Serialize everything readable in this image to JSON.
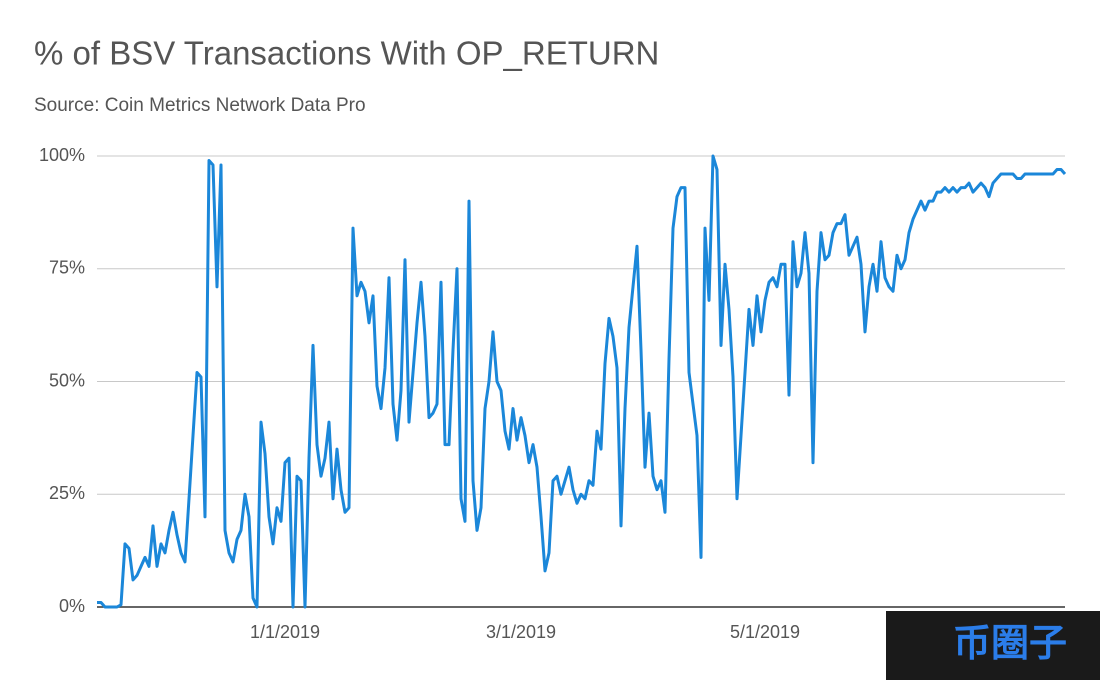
{
  "chart_data": {
    "type": "line",
    "title": "% of BSV Transactions With OP_RETURN",
    "subtitle": "Source: Coin Metrics Network Data Pro",
    "watermark": "币圈子",
    "x": [
      "2018-11-15",
      "2018-11-16",
      "2018-11-17",
      "2018-11-18",
      "2018-11-19",
      "2018-11-20",
      "2018-11-21",
      "2018-11-22",
      "2018-11-23",
      "2018-11-24",
      "2018-11-25",
      "2018-11-26",
      "2018-11-27",
      "2018-11-28",
      "2018-11-29",
      "2018-11-30",
      "2018-12-01",
      "2018-12-02",
      "2018-12-03",
      "2018-12-04",
      "2018-12-05",
      "2018-12-06",
      "2018-12-07",
      "2018-12-08",
      "2018-12-09",
      "2018-12-10",
      "2018-12-11",
      "2018-12-12",
      "2018-12-13",
      "2018-12-14",
      "2018-12-15",
      "2018-12-16",
      "2018-12-17",
      "2018-12-18",
      "2018-12-19",
      "2018-12-20",
      "2018-12-21",
      "2018-12-22",
      "2018-12-23",
      "2018-12-24",
      "2018-12-25",
      "2018-12-26",
      "2018-12-27",
      "2018-12-28",
      "2018-12-29",
      "2018-12-30",
      "2018-12-31",
      "2019-01-01",
      "2019-01-02",
      "2019-01-03",
      "2019-01-04",
      "2019-01-05",
      "2019-01-06",
      "2019-01-07",
      "2019-01-08",
      "2019-01-09",
      "2019-01-10",
      "2019-01-11",
      "2019-01-12",
      "2019-01-13",
      "2019-01-14",
      "2019-01-15",
      "2019-01-16",
      "2019-01-17",
      "2019-01-18",
      "2019-01-19",
      "2019-01-20",
      "2019-01-21",
      "2019-01-22",
      "2019-01-23",
      "2019-01-24",
      "2019-01-25",
      "2019-01-26",
      "2019-01-27",
      "2019-01-28",
      "2019-01-29",
      "2019-01-30",
      "2019-01-31",
      "2019-02-01",
      "2019-02-02",
      "2019-02-03",
      "2019-02-04",
      "2019-02-05",
      "2019-02-06",
      "2019-02-07",
      "2019-02-08",
      "2019-02-09",
      "2019-02-10",
      "2019-02-11",
      "2019-02-12",
      "2019-02-13",
      "2019-02-14",
      "2019-02-15",
      "2019-02-16",
      "2019-02-17",
      "2019-02-18",
      "2019-02-19",
      "2019-02-20",
      "2019-02-21",
      "2019-02-22",
      "2019-02-23",
      "2019-02-24",
      "2019-02-25",
      "2019-02-26",
      "2019-02-27",
      "2019-02-28",
      "2019-03-01",
      "2019-03-02",
      "2019-03-03",
      "2019-03-04",
      "2019-03-05",
      "2019-03-06",
      "2019-03-07",
      "2019-03-08",
      "2019-03-09",
      "2019-03-10",
      "2019-03-11",
      "2019-03-12",
      "2019-03-13",
      "2019-03-14",
      "2019-03-15",
      "2019-03-16",
      "2019-03-17",
      "2019-03-18",
      "2019-03-19",
      "2019-03-20",
      "2019-03-21",
      "2019-03-22",
      "2019-03-23",
      "2019-03-24",
      "2019-03-25",
      "2019-03-26",
      "2019-03-27",
      "2019-03-28",
      "2019-03-29",
      "2019-03-30",
      "2019-03-31",
      "2019-04-01",
      "2019-04-02",
      "2019-04-03",
      "2019-04-04",
      "2019-04-05",
      "2019-04-06",
      "2019-04-07",
      "2019-04-08",
      "2019-04-09",
      "2019-04-10",
      "2019-04-11",
      "2019-04-12",
      "2019-04-13",
      "2019-04-14",
      "2019-04-15",
      "2019-04-16",
      "2019-04-17",
      "2019-04-18",
      "2019-04-19",
      "2019-04-20",
      "2019-04-21",
      "2019-04-22",
      "2019-04-23",
      "2019-04-24",
      "2019-04-25",
      "2019-04-26",
      "2019-04-27",
      "2019-04-28",
      "2019-04-29",
      "2019-04-30",
      "2019-05-01",
      "2019-05-02",
      "2019-05-03",
      "2019-05-04",
      "2019-05-05",
      "2019-05-06",
      "2019-05-07",
      "2019-05-08",
      "2019-05-09",
      "2019-05-10",
      "2019-05-11",
      "2019-05-12",
      "2019-05-13",
      "2019-05-14",
      "2019-05-15",
      "2019-05-16",
      "2019-05-17",
      "2019-05-18",
      "2019-05-19",
      "2019-05-20",
      "2019-05-21",
      "2019-05-22",
      "2019-05-23",
      "2019-05-24",
      "2019-05-25",
      "2019-05-26",
      "2019-05-27",
      "2019-05-28",
      "2019-05-29",
      "2019-05-30",
      "2019-05-31",
      "2019-06-01",
      "2019-06-02",
      "2019-06-03",
      "2019-06-04",
      "2019-06-05",
      "2019-06-06",
      "2019-06-07",
      "2019-06-08",
      "2019-06-09",
      "2019-06-10",
      "2019-06-11",
      "2019-06-12",
      "2019-06-13",
      "2019-06-14",
      "2019-06-15",
      "2019-06-16",
      "2019-06-17",
      "2019-06-18",
      "2019-06-19",
      "2019-06-20",
      "2019-06-21",
      "2019-06-22",
      "2019-06-23",
      "2019-06-24",
      "2019-06-25",
      "2019-06-26",
      "2019-06-27",
      "2019-06-28",
      "2019-06-29",
      "2019-06-30",
      "2019-07-01",
      "2019-07-02",
      "2019-07-03",
      "2019-07-04",
      "2019-07-05",
      "2019-07-06",
      "2019-07-07",
      "2019-07-08",
      "2019-07-09",
      "2019-07-10",
      "2019-07-11",
      "2019-07-12",
      "2019-07-13",
      "2019-07-14",
      "2019-07-15"
    ],
    "series": [
      {
        "color": "#1b87d9",
        "values": [
          1,
          1,
          0,
          0,
          0,
          0,
          0.5,
          14,
          13,
          6,
          7,
          9,
          11,
          9,
          18,
          9,
          14,
          12,
          17,
          21,
          16,
          12,
          10,
          24,
          38,
          52,
          51,
          20,
          99,
          98,
          71,
          98,
          17,
          12,
          10,
          15,
          17,
          25,
          20,
          2,
          0,
          41,
          34,
          20,
          14,
          22,
          19,
          32,
          33,
          0,
          29,
          28,
          0,
          33,
          58,
          36,
          29,
          33,
          41,
          24,
          35,
          26,
          21,
          22,
          84,
          69,
          72,
          70,
          63,
          69,
          49,
          44,
          53,
          73,
          45,
          37,
          48,
          77,
          41,
          52,
          63,
          72,
          60,
          42,
          43,
          45,
          72,
          36,
          36,
          57,
          75,
          24,
          19,
          90,
          28,
          17,
          22,
          44,
          50,
          61,
          50,
          48,
          39,
          35,
          44,
          37,
          42,
          38,
          32,
          36,
          31,
          20,
          8,
          12,
          28,
          29,
          25,
          28,
          31,
          26,
          23,
          25,
          24,
          28,
          27,
          39,
          35,
          54,
          64,
          60,
          53,
          18,
          44,
          62,
          71,
          80,
          57,
          31,
          43,
          29,
          26,
          28,
          21,
          55,
          84,
          91,
          93,
          93,
          52,
          45,
          38,
          11,
          84,
          68,
          100,
          97,
          58,
          76,
          66,
          51,
          24,
          38,
          52,
          66,
          58,
          69,
          61,
          68,
          72,
          73,
          71,
          76,
          76,
          47,
          81,
          71,
          74,
          83,
          74,
          32,
          70,
          83,
          77,
          78,
          83,
          85,
          85,
          87,
          78,
          80,
          82,
          76,
          61,
          71,
          76,
          70,
          81,
          73,
          71,
          70,
          78,
          75,
          77,
          83,
          86,
          88,
          90,
          88,
          90,
          90,
          92,
          92,
          93,
          92,
          93,
          92,
          93,
          93,
          94,
          92,
          93,
          94,
          93,
          91,
          94,
          95,
          96,
          96,
          96,
          96,
          95,
          95,
          96,
          96,
          96,
          96,
          96,
          96,
          96,
          96,
          97,
          97,
          96
        ]
      }
    ],
    "xlim": [
      "2018-11-15",
      "2019-07-15"
    ],
    "xticks": [
      {
        "value": "2019-01-01",
        "label": "1/1/2019"
      },
      {
        "value": "2019-03-01",
        "label": "3/1/2019"
      },
      {
        "value": "2019-05-01",
        "label": "5/1/2019"
      }
    ],
    "ylim": [
      0,
      100
    ],
    "yticks": [
      {
        "value": 0,
        "label": "0%"
      },
      {
        "value": 25,
        "label": "25%"
      },
      {
        "value": 50,
        "label": "50%"
      },
      {
        "value": 75,
        "label": "75%"
      },
      {
        "value": 100,
        "label": "100%"
      }
    ],
    "grid": true
  }
}
